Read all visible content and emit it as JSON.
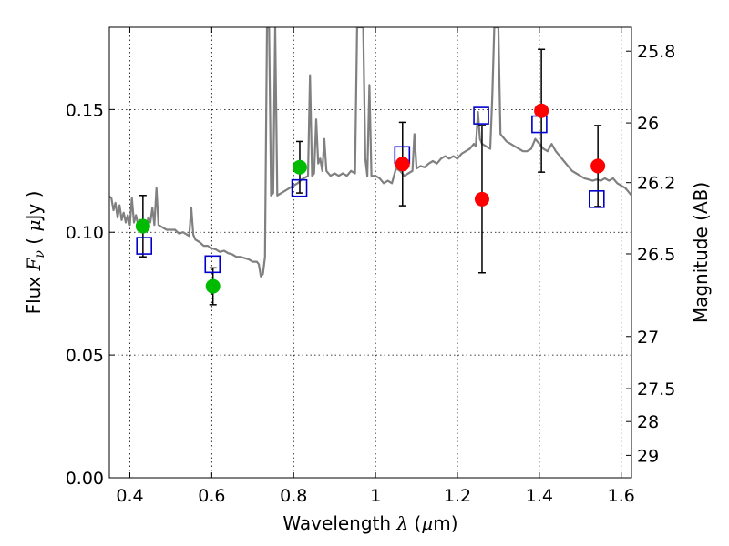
{
  "chart_data": {
    "type": "scatter",
    "xlabel": {
      "pre": "Wavelength ",
      "sym": "λ",
      "post": " (",
      "unit_sym": "μ",
      "unit_post": "m)"
    },
    "ylabel": {
      "pre": "Flux ",
      "sym": "F",
      "sub": "ν",
      "post": " ( ",
      "unit_sym": "μ",
      "unit_post": "Jy )"
    },
    "y2label": "Magnitude (AB)",
    "xlim": [
      0.35,
      1.625
    ],
    "ylim": [
      0.0,
      0.1835
    ],
    "grid": true,
    "x_ticks": [
      {
        "value": 0.4,
        "label": "0.4"
      },
      {
        "value": 0.6,
        "label": "0.6"
      },
      {
        "value": 0.8,
        "label": "0.8"
      },
      {
        "value": 1.0,
        "label": "1"
      },
      {
        "value": 1.2,
        "label": "1.2"
      },
      {
        "value": 1.4,
        "label": "1.4"
      },
      {
        "value": 1.6,
        "label": "1.6"
      }
    ],
    "y_ticks": [
      {
        "value": 0.0,
        "label": "0.00"
      },
      {
        "value": 0.05,
        "label": "0.05"
      },
      {
        "value": 0.1,
        "label": "0.10"
      },
      {
        "value": 0.15,
        "label": "0.15"
      }
    ],
    "y2_ticks": [
      {
        "value": 25.8,
        "label": "25.8"
      },
      {
        "value": 26.0,
        "label": "26"
      },
      {
        "value": 26.2,
        "label": "26.2"
      },
      {
        "value": 26.5,
        "label": "26.5"
      },
      {
        "value": 27.0,
        "label": "27"
      },
      {
        "value": 27.5,
        "label": "27.5"
      },
      {
        "value": 28.0,
        "label": "28"
      },
      {
        "value": 29.0,
        "label": "29"
      }
    ],
    "colors": {
      "spectrum": "#808080",
      "green": "#00bb00",
      "red": "#ff0000",
      "model": "#0000cc",
      "error": "#000000"
    },
    "spectrum": [
      [
        0.35,
        0.1146
      ],
      [
        0.355,
        0.114
      ],
      [
        0.36,
        0.109
      ],
      [
        0.365,
        0.112
      ],
      [
        0.37,
        0.106
      ],
      [
        0.375,
        0.111
      ],
      [
        0.38,
        0.105
      ],
      [
        0.385,
        0.108
      ],
      [
        0.39,
        0.104
      ],
      [
        0.395,
        0.107
      ],
      [
        0.4,
        0.103
      ],
      [
        0.405,
        0.114
      ],
      [
        0.41,
        0.104
      ],
      [
        0.415,
        0.107
      ],
      [
        0.42,
        0.103
      ],
      [
        0.425,
        0.105
      ],
      [
        0.43,
        0.1
      ],
      [
        0.435,
        0.104
      ],
      [
        0.44,
        0.101
      ],
      [
        0.445,
        0.106
      ],
      [
        0.45,
        0.104
      ],
      [
        0.455,
        0.11
      ],
      [
        0.46,
        0.103
      ],
      [
        0.465,
        0.118
      ],
      [
        0.47,
        0.103
      ],
      [
        0.48,
        0.102
      ],
      [
        0.49,
        0.101
      ],
      [
        0.5,
        0.101
      ],
      [
        0.51,
        0.101
      ],
      [
        0.52,
        0.0995
      ],
      [
        0.53,
        0.1
      ],
      [
        0.54,
        0.099
      ],
      [
        0.545,
        0.0985
      ],
      [
        0.55,
        0.11
      ],
      [
        0.555,
        0.099
      ],
      [
        0.56,
        0.097
      ],
      [
        0.57,
        0.096
      ],
      [
        0.58,
        0.0945
      ],
      [
        0.59,
        0.0945
      ],
      [
        0.6,
        0.0935
      ],
      [
        0.61,
        0.093
      ],
      [
        0.62,
        0.092
      ],
      [
        0.63,
        0.0925
      ],
      [
        0.64,
        0.0915
      ],
      [
        0.65,
        0.091
      ],
      [
        0.66,
        0.09
      ],
      [
        0.67,
        0.09
      ],
      [
        0.68,
        0.0895
      ],
      [
        0.69,
        0.089
      ],
      [
        0.7,
        0.088
      ],
      [
        0.71,
        0.088
      ],
      [
        0.715,
        0.087
      ],
      [
        0.72,
        0.082
      ],
      [
        0.725,
        0.083
      ],
      [
        0.73,
        0.09
      ],
      [
        0.735,
        0.1835
      ],
      [
        0.74,
        0.1835
      ],
      [
        0.745,
        0.115
      ],
      [
        0.75,
        0.116
      ],
      [
        0.755,
        0.1835
      ],
      [
        0.76,
        0.115
      ],
      [
        0.77,
        0.116
      ],
      [
        0.78,
        0.117
      ],
      [
        0.79,
        0.118
      ],
      [
        0.8,
        0.119
      ],
      [
        0.81,
        0.12
      ],
      [
        0.82,
        0.1215
      ],
      [
        0.83,
        0.1225
      ],
      [
        0.835,
        0.123
      ],
      [
        0.84,
        0.164
      ],
      [
        0.845,
        0.123
      ],
      [
        0.85,
        0.124
      ],
      [
        0.855,
        0.146
      ],
      [
        0.86,
        0.128
      ],
      [
        0.865,
        0.13
      ],
      [
        0.87,
        0.125
      ],
      [
        0.875,
        0.138
      ],
      [
        0.88,
        0.125
      ],
      [
        0.89,
        0.123
      ],
      [
        0.9,
        0.124
      ],
      [
        0.91,
        0.123
      ],
      [
        0.92,
        0.124
      ],
      [
        0.93,
        0.123
      ],
      [
        0.94,
        0.125
      ],
      [
        0.95,
        0.124
      ],
      [
        0.955,
        0.1835
      ],
      [
        0.96,
        0.1835
      ],
      [
        0.965,
        0.1835
      ],
      [
        0.97,
        0.1835
      ],
      [
        0.975,
        0.13
      ],
      [
        0.98,
        0.123
      ],
      [
        0.985,
        0.16
      ],
      [
        0.99,
        0.123
      ],
      [
        1.0,
        0.123
      ],
      [
        1.01,
        0.122
      ],
      [
        1.02,
        0.12
      ],
      [
        1.03,
        0.121
      ],
      [
        1.04,
        0.12
      ],
      [
        1.05,
        0.126
      ],
      [
        1.06,
        0.125
      ],
      [
        1.07,
        0.123
      ],
      [
        1.08,
        0.124
      ],
      [
        1.09,
        0.125
      ],
      [
        1.095,
        0.14
      ],
      [
        1.1,
        0.126
      ],
      [
        1.11,
        0.127
      ],
      [
        1.12,
        0.1265
      ],
      [
        1.13,
        0.128
      ],
      [
        1.14,
        0.129
      ],
      [
        1.15,
        0.128
      ],
      [
        1.16,
        0.13
      ],
      [
        1.17,
        0.131
      ],
      [
        1.18,
        0.13
      ],
      [
        1.19,
        0.131
      ],
      [
        1.2,
        0.13
      ],
      [
        1.21,
        0.132
      ],
      [
        1.22,
        0.133
      ],
      [
        1.23,
        0.134
      ],
      [
        1.24,
        0.136
      ],
      [
        1.245,
        0.135
      ],
      [
        1.25,
        0.149
      ],
      [
        1.255,
        0.138
      ],
      [
        1.26,
        0.136
      ],
      [
        1.27,
        0.135
      ],
      [
        1.28,
        0.134
      ],
      [
        1.285,
        0.155
      ],
      [
        1.29,
        0.1835
      ],
      [
        1.3,
        0.1835
      ],
      [
        1.305,
        0.14
      ],
      [
        1.31,
        0.139
      ],
      [
        1.32,
        0.137
      ],
      [
        1.33,
        0.136
      ],
      [
        1.34,
        0.135
      ],
      [
        1.35,
        0.134
      ],
      [
        1.36,
        0.133
      ],
      [
        1.37,
        0.133
      ],
      [
        1.38,
        0.134
      ],
      [
        1.39,
        0.138
      ],
      [
        1.4,
        0.136
      ],
      [
        1.41,
        0.134
      ],
      [
        1.42,
        0.133
      ],
      [
        1.43,
        0.136
      ],
      [
        1.44,
        0.133
      ],
      [
        1.45,
        0.131
      ],
      [
        1.46,
        0.129
      ],
      [
        1.47,
        0.127
      ],
      [
        1.48,
        0.125
      ],
      [
        1.49,
        0.124
      ],
      [
        1.5,
        0.123
      ],
      [
        1.51,
        0.122
      ],
      [
        1.52,
        0.1215
      ],
      [
        1.53,
        0.121
      ],
      [
        1.54,
        0.1215
      ],
      [
        1.55,
        0.121
      ],
      [
        1.56,
        0.122
      ],
      [
        1.57,
        0.121
      ],
      [
        1.58,
        0.122
      ],
      [
        1.59,
        0.12
      ],
      [
        1.6,
        0.119
      ],
      [
        1.61,
        0.118
      ],
      [
        1.62,
        0.116
      ],
      [
        1.625,
        0.115
      ]
    ],
    "observed_green": [
      {
        "x": 0.432,
        "y": 0.1025,
        "err": 0.0125
      },
      {
        "x": 0.603,
        "y": 0.078,
        "err": 0.0075
      },
      {
        "x": 0.815,
        "y": 0.1265,
        "err": 0.0105
      }
    ],
    "observed_red": [
      {
        "x": 1.066,
        "y": 0.1278,
        "err": 0.017
      },
      {
        "x": 1.26,
        "y": 0.1135,
        "err": 0.03
      },
      {
        "x": 1.405,
        "y": 0.1495,
        "err": 0.025
      },
      {
        "x": 1.543,
        "y": 0.127,
        "err": 0.0165
      }
    ],
    "model_points": [
      {
        "x": 0.435,
        "y": 0.0945
      },
      {
        "x": 0.602,
        "y": 0.087
      },
      {
        "x": 0.814,
        "y": 0.118
      },
      {
        "x": 1.065,
        "y": 0.1315
      },
      {
        "x": 1.258,
        "y": 0.1475
      },
      {
        "x": 1.4,
        "y": 0.144
      },
      {
        "x": 1.54,
        "y": 0.1135
      }
    ]
  }
}
